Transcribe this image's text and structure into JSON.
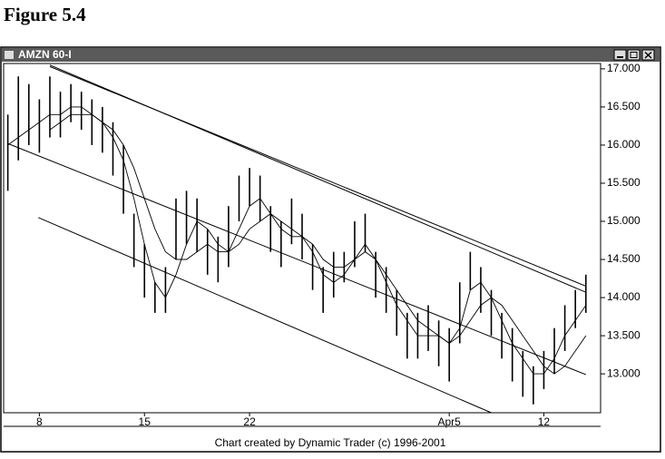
{
  "figure_label": "Figure 5.4",
  "chart_data": {
    "type": "range-bar",
    "title": "AMZN 60-I",
    "caption": "Chart created by Dynamic Trader (c) 1996-2001",
    "categories": [
      null,
      null,
      null,
      "8",
      null,
      null,
      null,
      null,
      null,
      null,
      null,
      null,
      null,
      "15",
      null,
      null,
      null,
      null,
      null,
      null,
      null,
      null,
      null,
      "22",
      null,
      null,
      null,
      null,
      null,
      null,
      null,
      null,
      null,
      null,
      null,
      null,
      null,
      null,
      null,
      null,
      null,
      null,
      "Apr5",
      null,
      null,
      null,
      null,
      null,
      null,
      null,
      null,
      "12",
      null,
      null,
      null,
      null
    ],
    "high": [
      16.4,
      16.9,
      16.8,
      16.6,
      16.9,
      16.7,
      16.8,
      16.7,
      16.6,
      16.5,
      16.3,
      16.0,
      15.1,
      14.7,
      14.2,
      14.4,
      15.3,
      15.4,
      15.3,
      14.9,
      14.8,
      15.2,
      15.6,
      15.7,
      15.6,
      15.2,
      15.0,
      15.3,
      15.1,
      14.7,
      14.4,
      14.6,
      14.6,
      15.0,
      15.1,
      14.6,
      14.4,
      14.1,
      13.8,
      13.8,
      13.9,
      13.7,
      13.6,
      14.2,
      14.6,
      14.4,
      14.1,
      13.8,
      13.6,
      13.3,
      13.1,
      13.3,
      13.6,
      13.9,
      14.1,
      14.3
    ],
    "low": [
      15.4,
      15.8,
      16.0,
      15.9,
      16.1,
      16.1,
      16.3,
      16.2,
      16.0,
      15.9,
      15.6,
      15.1,
      14.4,
      14.0,
      13.8,
      13.8,
      14.5,
      14.7,
      14.6,
      14.3,
      14.2,
      14.4,
      15.0,
      15.2,
      15.0,
      14.6,
      14.4,
      14.7,
      14.5,
      14.1,
      13.8,
      14.0,
      14.2,
      14.4,
      14.6,
      14.0,
      13.8,
      13.5,
      13.2,
      13.2,
      13.3,
      13.1,
      12.9,
      13.4,
      14.1,
      13.8,
      13.5,
      13.2,
      12.9,
      12.7,
      12.6,
      12.8,
      13.0,
      13.3,
      13.6,
      13.8
    ],
    "moving_averages": [
      [
        16.0,
        16.1,
        16.2,
        16.3,
        16.4,
        16.4,
        16.5,
        16.5,
        16.4,
        16.3,
        16.1,
        15.8,
        15.3,
        14.7,
        14.2,
        14.0,
        14.3,
        14.7,
        15.0,
        14.9,
        14.7,
        14.6,
        14.9,
        15.2,
        15.3,
        15.1,
        14.9,
        14.8,
        14.8,
        14.6,
        14.3,
        14.2,
        14.3,
        14.5,
        14.7,
        14.5,
        14.2,
        13.9,
        13.7,
        13.5,
        13.5,
        13.5,
        13.4,
        13.6,
        14.1,
        14.2,
        14.0,
        13.7,
        13.4,
        13.2,
        13.0,
        13.0,
        13.2,
        13.5,
        13.7,
        13.9
      ],
      [
        null,
        null,
        null,
        null,
        16.2,
        16.3,
        16.4,
        16.4,
        16.4,
        16.3,
        16.2,
        16.0,
        15.7,
        15.3,
        14.9,
        14.6,
        14.5,
        14.5,
        14.6,
        14.7,
        14.6,
        14.6,
        14.7,
        14.9,
        15.0,
        15.1,
        15.0,
        14.9,
        14.8,
        14.7,
        14.5,
        14.4,
        14.4,
        14.5,
        14.6,
        14.5,
        14.3,
        14.1,
        13.9,
        13.7,
        13.6,
        13.5,
        13.4,
        13.5,
        13.7,
        13.9,
        14.0,
        13.9,
        13.7,
        13.5,
        13.3,
        13.1,
        13.0,
        13.1,
        13.3,
        13.5
      ]
    ],
    "trendlines": [
      {
        "x": [
          4,
          55
        ],
        "y": [
          17.05,
          14.07
        ]
      },
      {
        "x": [
          4,
          55
        ],
        "y": [
          17.03,
          14.15
        ]
      },
      {
        "x": [
          0,
          55
        ],
        "y": [
          16.02,
          12.99
        ]
      },
      {
        "x": [
          2.9,
          46
        ],
        "y": [
          15.05,
          12.49
        ]
      }
    ],
    "color": "#000000",
    "xlim": [
      -0.4,
      56.4
    ],
    "ylim": [
      12.49,
      17.07
    ],
    "yticks": [
      {
        "value": 13,
        "label": "13.000"
      },
      {
        "value": 13.5,
        "label": "13.500"
      },
      {
        "value": 14,
        "label": "14.000"
      },
      {
        "value": 14.5,
        "label": "14.500"
      },
      {
        "value": 15,
        "label": "15.000"
      },
      {
        "value": 15.5,
        "label": "15.500"
      },
      {
        "value": 16,
        "label": "16.000"
      },
      {
        "value": 16.5,
        "label": "16.500"
      },
      {
        "value": 17,
        "label": "17.000"
      }
    ],
    "grid": false
  }
}
